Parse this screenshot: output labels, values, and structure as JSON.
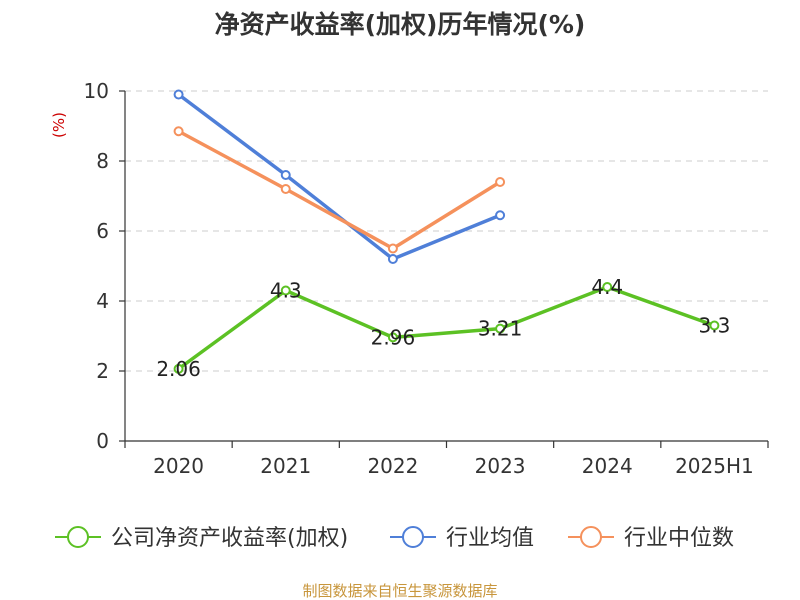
{
  "chart_data": {
    "type": "line",
    "title": "净资产收益率(加权)历年情况(%)",
    "ylabel": "(%)",
    "categories": [
      "2020",
      "2021",
      "2022",
      "2023",
      "2024",
      "2025H1"
    ],
    "ylim": [
      0,
      10
    ],
    "yticks": [
      0,
      2,
      4,
      6,
      8,
      10
    ],
    "grid": true,
    "legend_position": "bottom",
    "series": [
      {
        "name": "公司净资产收益率(加权)",
        "color": "#5cc124",
        "values": [
          2.06,
          4.3,
          2.96,
          3.21,
          4.4,
          3.3
        ],
        "data_labels": [
          "2.06",
          "4.3",
          "2.96",
          "3.21",
          "4.4",
          "3.3"
        ]
      },
      {
        "name": "行业均值",
        "color": "#4f7fd8",
        "values": [
          9.9,
          7.6,
          5.2,
          6.45,
          null,
          null
        ]
      },
      {
        "name": "行业中位数",
        "color": "#f5915c",
        "values": [
          8.85,
          7.2,
          5.5,
          7.4,
          null,
          null
        ]
      }
    ]
  },
  "source_text": "制图数据来自恒生聚源数据库"
}
